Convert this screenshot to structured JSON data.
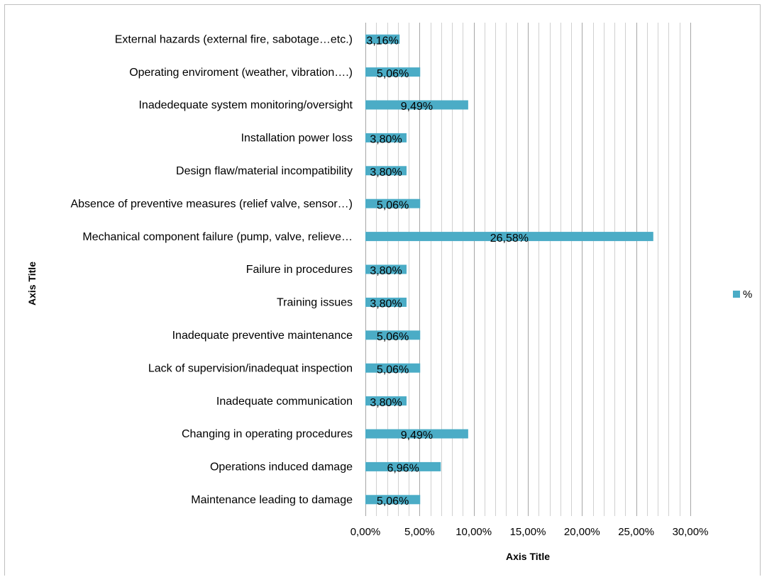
{
  "chart_data": {
    "type": "bar",
    "orientation": "horizontal",
    "categories": [
      "External hazards (external fire, sabotage…etc.)",
      "Operating enviroment (weather, vibration….)",
      "Inadedequate system monitoring/oversight",
      "Installation power loss",
      "Design flaw/material incompatibility",
      "Absence of preventive measures (relief valve, sensor…)",
      "Mechanical component failure (pump, valve, relieve…",
      "Failure in  procedures",
      "Training issues",
      "Inadequate preventive maintenance",
      "Lack of supervision/inadequat inspection",
      "Inadequate communication",
      "Changing in operating procedures",
      "Operations induced damage",
      "Maintenance leading to damage"
    ],
    "series": [
      {
        "name": "%",
        "color": "#4bacc6",
        "values": [
          3.16,
          5.06,
          9.49,
          3.8,
          3.8,
          5.06,
          26.58,
          3.8,
          3.8,
          5.06,
          5.06,
          3.8,
          9.49,
          6.96,
          5.06
        ],
        "data_labels": [
          "3,16%",
          "5,06%",
          "9,49%",
          "3,80%",
          "3,80%",
          "5,06%",
          "26,58%",
          "3,80%",
          "3,80%",
          "5,06%",
          "5,06%",
          "3,80%",
          "9,49%",
          "6,96%",
          "5,06%"
        ]
      }
    ],
    "xlim": [
      0,
      30
    ],
    "x_ticks": [
      0,
      5,
      10,
      15,
      20,
      25,
      30
    ],
    "x_tick_labels": [
      "0,00%",
      "5,00%",
      "10,00%",
      "15,00%",
      "20,00%",
      "25,00%",
      "30,00%"
    ],
    "minor_gridlines": true,
    "xlabel": "Axis Title",
    "ylabel": "Axis Title",
    "legend_position": "right"
  }
}
